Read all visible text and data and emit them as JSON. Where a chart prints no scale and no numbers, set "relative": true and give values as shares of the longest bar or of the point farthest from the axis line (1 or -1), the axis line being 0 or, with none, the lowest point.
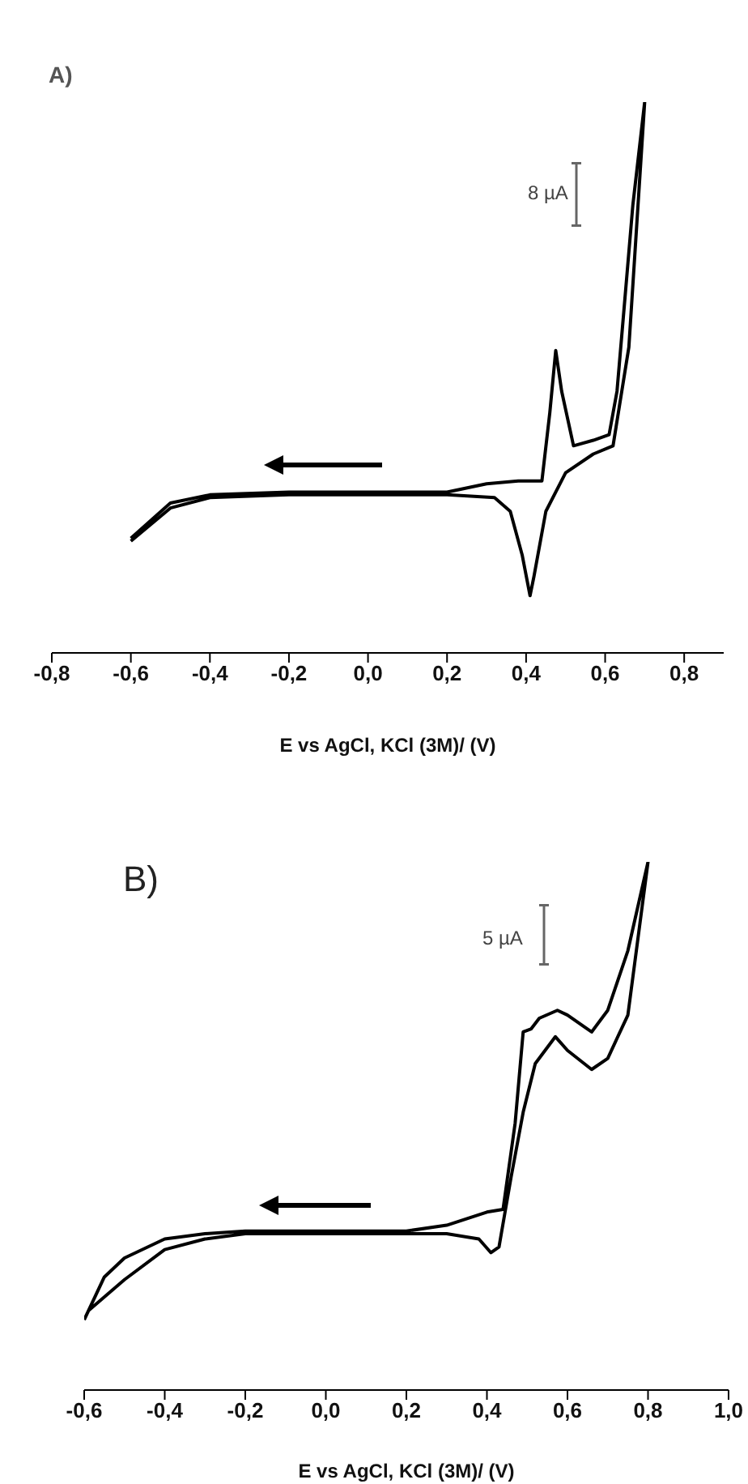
{
  "chart_data": [
    {
      "type": "line",
      "title": "A)",
      "xlabel": "E vs AgCl, KCl (3M)/ (V)",
      "relative": true,
      "xlim": [
        -0.8,
        0.9
      ],
      "xticks": [
        {
          "value": -0.8,
          "label": "-0,8"
        },
        {
          "value": -0.6,
          "label": "-0,6"
        },
        {
          "value": -0.4,
          "label": "-0,4"
        },
        {
          "value": -0.2,
          "label": "-0,2"
        },
        {
          "value": 0,
          "label": "0,0"
        },
        {
          "value": 0.2,
          "label": "0,2"
        },
        {
          "value": 0.4,
          "label": "0,4"
        },
        {
          "value": 0.6,
          "label": "0,6"
        },
        {
          "value": 0.8,
          "label": "0,8"
        }
      ],
      "annotations": [
        "8 µA"
      ],
      "series": [
        {
          "color": "#000000",
          "x": [
            -0.6,
            -0.5,
            -0.4,
            -0.2,
            0,
            0.2,
            0.3,
            0.38,
            0.44,
            0.46,
            0.475,
            0.49,
            0.52,
            0.57,
            0.61,
            0.63,
            0.65,
            0.67,
            0.7,
            0.66,
            0.62,
            0.57,
            0.5,
            0.45,
            0.42,
            0.41,
            0.39,
            0.36,
            0.32,
            0.2,
            0,
            -0.2,
            -0.4,
            -0.5,
            -0.6
          ],
          "values": [
            0.208,
            0.272,
            0.287,
            0.292,
            0.292,
            0.292,
            0.307,
            0.312,
            0.312,
            0.436,
            0.549,
            0.475,
            0.376,
            0.386,
            0.396,
            0.475,
            0.643,
            0.812,
            1,
            0.555,
            0.376,
            0.361,
            0.327,
            0.257,
            0.139,
            0.104,
            0.178,
            0.257,
            0.282,
            0.287,
            0.287,
            0.287,
            0.282,
            0.263,
            0.203
          ]
        }
      ]
    },
    {
      "type": "line",
      "title": "B)",
      "xlabel": "E vs AgCl, KCl (3M)/ (V)",
      "relative": true,
      "xlim": [
        -0.6,
        1.0
      ],
      "xticks": [
        {
          "value": -0.6,
          "label": "-0,6"
        },
        {
          "value": -0.4,
          "label": "-0,4"
        },
        {
          "value": -0.2,
          "label": "-0,2"
        },
        {
          "value": 0,
          "label": "0,0"
        },
        {
          "value": 0.2,
          "label": "0,2"
        },
        {
          "value": 0.4,
          "label": "0,4"
        },
        {
          "value": 0.6,
          "label": "0,6"
        },
        {
          "value": 0.8,
          "label": "0,8"
        },
        {
          "value": 1.0,
          "label": "1,0"
        }
      ],
      "annotations": [
        "5 µA"
      ],
      "series": [
        {
          "color": "#000000",
          "x": [
            -0.6,
            -0.55,
            -0.5,
            -0.4,
            -0.3,
            -0.2,
            0,
            0.2,
            0.3,
            0.4,
            0.44,
            0.47,
            0.49,
            0.51,
            0.53,
            0.575,
            0.6,
            0.66,
            0.7,
            0.75,
            0.8,
            0.75,
            0.7,
            0.66,
            0.6,
            0.57,
            0.52,
            0.49,
            0.46,
            0.43,
            0.41,
            0.38,
            0.3,
            0.2,
            0,
            -0.2,
            -0.3,
            -0.4,
            -0.5,
            -0.59
          ],
          "values": [
            0.133,
            0.214,
            0.25,
            0.286,
            0.296,
            0.301,
            0.301,
            0.301,
            0.312,
            0.337,
            0.342,
            0.505,
            0.678,
            0.684,
            0.704,
            0.719,
            0.71,
            0.678,
            0.719,
            0.832,
            1,
            0.71,
            0.628,
            0.607,
            0.643,
            0.669,
            0.618,
            0.526,
            0.403,
            0.271,
            0.26,
            0.286,
            0.296,
            0.296,
            0.296,
            0.296,
            0.286,
            0.266,
            0.209,
            0.15
          ]
        }
      ]
    }
  ]
}
